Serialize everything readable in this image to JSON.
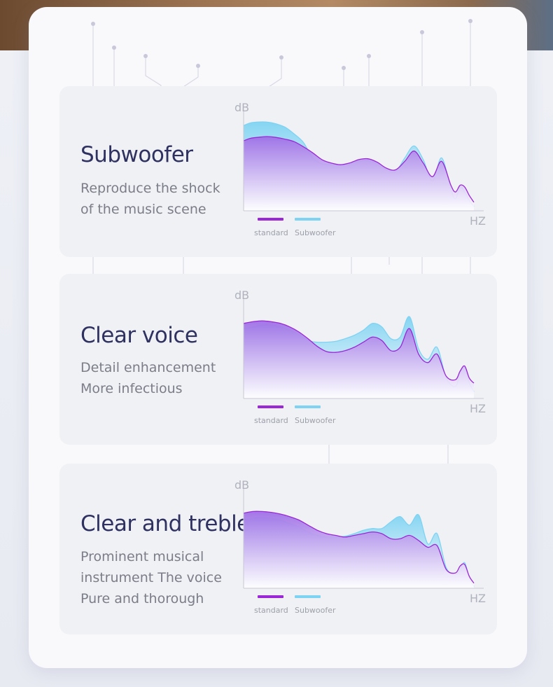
{
  "colors": {
    "standard": "#9a28d6",
    "subwoofer": "#7fd3f2",
    "title": "#2f3160",
    "desc": "#7b7d88"
  },
  "panels": [
    {
      "title": "Subwoofer",
      "desc_lines": [
        "Reproduce the shock",
        "of the music scene"
      ],
      "ylabel": "dB",
      "xlabel": "HZ",
      "legend": [
        "standard",
        "Subwoofer"
      ],
      "chart_data": {
        "type": "area",
        "x": [
          0,
          3,
          6,
          10,
          14,
          18,
          22,
          26,
          30,
          34,
          38,
          42,
          46,
          50,
          54,
          58,
          62,
          66,
          70,
          74,
          78,
          82,
          86,
          90,
          92,
          94,
          96,
          98,
          100
        ],
        "series": [
          {
            "name": "standard",
            "values": [
              82,
              85,
              86,
              87,
              86,
              84,
              81,
              75,
              68,
              60,
              56,
              54,
              56,
              60,
              61,
              57,
              50,
              48,
              58,
              70,
              56,
              40,
              58,
              30,
              22,
              30,
              28,
              18,
              10
            ]
          },
          {
            "name": "Subwoofer",
            "values": [
              100,
              103,
              104,
              104,
              102,
              98,
              90,
              80,
              62,
              55,
              54,
              53,
              55,
              58,
              59,
              55,
              48,
              46,
              62,
              76,
              60,
              35,
              62,
              25,
              14,
              28,
              22,
              12,
              5
            ]
          }
        ]
      }
    },
    {
      "title": "Clear voice",
      "desc_lines": [
        "Detail enhancement",
        "More infectious"
      ],
      "ylabel": "dB",
      "xlabel": "HZ",
      "legend": [
        "standard",
        "Subwoofer"
      ],
      "chart_data": {
        "type": "area",
        "x": [
          0,
          4,
          8,
          12,
          16,
          20,
          24,
          28,
          32,
          36,
          40,
          44,
          48,
          52,
          56,
          60,
          64,
          68,
          72,
          76,
          80,
          84,
          88,
          92,
          94,
          96,
          98,
          100
        ],
        "series": [
          {
            "name": "standard",
            "values": [
              88,
              90,
              91,
              90,
              88,
              84,
              78,
              70,
              61,
              55,
              54,
              56,
              60,
              66,
              72,
              68,
              56,
              60,
              82,
              52,
              42,
              52,
              26,
              22,
              32,
              38,
              24,
              18
            ]
          },
          {
            "name": "Subwoofer",
            "values": [
              82,
              84,
              86,
              86,
              84,
              80,
              75,
              68,
              66,
              66,
              67,
              70,
              74,
              80,
              88,
              84,
              70,
              72,
              96,
              58,
              46,
              60,
              24,
              14,
              30,
              36,
              18,
              8
            ]
          }
        ]
      }
    },
    {
      "title": "Clear and treble",
      "desc_lines": [
        "Prominent musical",
        "instrument The voice",
        "Pure and thorough"
      ],
      "ylabel": "dB",
      "xlabel": "HZ",
      "legend": [
        "standard",
        "Subwoofer"
      ],
      "chart_data": {
        "type": "area",
        "x": [
          0,
          4,
          8,
          12,
          16,
          20,
          24,
          28,
          32,
          36,
          40,
          44,
          48,
          52,
          56,
          60,
          64,
          68,
          72,
          76,
          80,
          84,
          88,
          92,
          94,
          96,
          98,
          100
        ],
        "series": [
          {
            "name": "standard",
            "values": [
              88,
              90,
              90,
              89,
              87,
              84,
              80,
              74,
              68,
              64,
              62,
              60,
              62,
              64,
              66,
              64,
              58,
              58,
              62,
              56,
              48,
              50,
              22,
              18,
              26,
              28,
              14,
              6
            ]
          },
          {
            "name": "Subwoofer",
            "values": [
              80,
              82,
              83,
              82,
              80,
              76,
              72,
              66,
              62,
              60,
              60,
              61,
              64,
              68,
              70,
              70,
              78,
              84,
              74,
              86,
              52,
              64,
              24,
              16,
              22,
              30,
              12,
              2
            ]
          }
        ]
      }
    }
  ]
}
